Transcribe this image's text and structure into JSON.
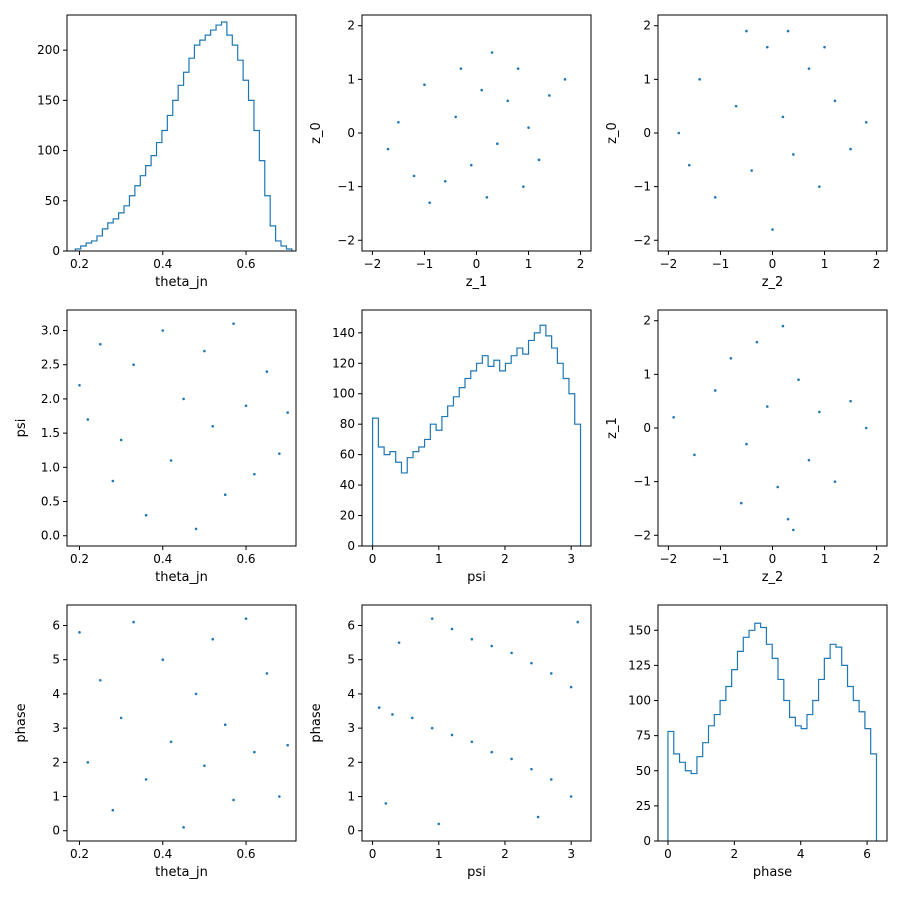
{
  "colors": {
    "series": "#1f77b4",
    "axes": "#000000",
    "background": "#ffffff"
  },
  "chart_data": [
    {
      "id": "theta_hist",
      "type": "step-histogram",
      "xlabel": "theta_jn",
      "ylabel": "",
      "xlim": [
        0.17,
        0.72
      ],
      "ylim": [
        0,
        235
      ],
      "xticks": [
        0.2,
        0.4,
        0.6
      ],
      "xtick_labels": [
        "0.2",
        "0.4",
        "0.6"
      ],
      "yticks": [
        0,
        50,
        100,
        150,
        200
      ],
      "ytick_labels": [
        "0",
        "50",
        "100",
        "150",
        "200"
      ],
      "bin_range": [
        0.19,
        0.71
      ],
      "values": [
        2,
        5,
        8,
        10,
        15,
        22,
        28,
        32,
        38,
        45,
        55,
        65,
        75,
        85,
        95,
        108,
        120,
        135,
        150,
        165,
        178,
        192,
        205,
        210,
        215,
        220,
        225,
        228,
        215,
        205,
        190,
        170,
        150,
        120,
        90,
        55,
        25,
        10,
        5,
        2
      ],
      "grid": false
    },
    {
      "id": "z0_vs_z1",
      "type": "scatter",
      "xlabel": "z_1",
      "ylabel": "z_0",
      "xlim": [
        -2.2,
        2.2
      ],
      "ylim": [
        -2.2,
        2.2
      ],
      "xticks": [
        -2,
        -1,
        0,
        1,
        2
      ],
      "xtick_labels": [
        "−2",
        "−1",
        "0",
        "1",
        "2"
      ],
      "yticks": [
        -2,
        -1,
        0,
        1,
        2
      ],
      "ytick_labels": [
        "−2",
        "−1",
        "0",
        "1",
        "2"
      ],
      "points": [
        [
          -1.5,
          0.2
        ],
        [
          -1.2,
          -0.8
        ],
        [
          -0.9,
          -1.3
        ],
        [
          -0.6,
          -0.9
        ],
        [
          -0.4,
          0.3
        ],
        [
          -0.1,
          -0.6
        ],
        [
          0.1,
          0.8
        ],
        [
          0.3,
          1.5
        ],
        [
          0.4,
          -0.2
        ],
        [
          0.6,
          0.6
        ],
        [
          0.8,
          1.2
        ],
        [
          1.0,
          0.1
        ],
        [
          1.2,
          -0.5
        ],
        [
          1.4,
          0.7
        ],
        [
          1.7,
          1.0
        ],
        [
          -0.3,
          1.2
        ],
        [
          0.2,
          -1.2
        ],
        [
          -1.0,
          0.9
        ],
        [
          0.9,
          -1.0
        ],
        [
          -1.7,
          -0.3
        ]
      ],
      "grid": false
    },
    {
      "id": "z0_vs_z2",
      "type": "scatter",
      "xlabel": "z_2",
      "ylabel": "z_0",
      "xlim": [
        -2.2,
        2.2
      ],
      "ylim": [
        -2.2,
        2.2
      ],
      "xticks": [
        -2,
        -1,
        0,
        1,
        2
      ],
      "xtick_labels": [
        "−2",
        "−1",
        "0",
        "1",
        "2"
      ],
      "yticks": [
        -2,
        -1,
        0,
        1,
        2
      ],
      "ytick_labels": [
        "−2",
        "−1",
        "0",
        "1",
        "2"
      ],
      "points": [
        [
          -1.8,
          0.0
        ],
        [
          -1.4,
          1.0
        ],
        [
          -1.1,
          -1.2
        ],
        [
          -0.7,
          0.5
        ],
        [
          -0.4,
          -0.7
        ],
        [
          -0.1,
          1.6
        ],
        [
          0.0,
          -1.8
        ],
        [
          0.2,
          0.3
        ],
        [
          0.4,
          -0.4
        ],
        [
          0.7,
          1.2
        ],
        [
          0.9,
          -1.0
        ],
        [
          1.2,
          0.6
        ],
        [
          1.5,
          -0.3
        ],
        [
          1.8,
          0.2
        ],
        [
          -0.5,
          1.9
        ],
        [
          0.3,
          1.9
        ],
        [
          -1.6,
          -0.6
        ],
        [
          1.0,
          1.6
        ]
      ],
      "grid": false
    },
    {
      "id": "psi_vs_theta",
      "type": "scatter",
      "xlabel": "theta_jn",
      "ylabel": "psi",
      "xlim": [
        0.17,
        0.72
      ],
      "ylim": [
        -0.15,
        3.3
      ],
      "xticks": [
        0.2,
        0.4,
        0.6
      ],
      "xtick_labels": [
        "0.2",
        "0.4",
        "0.6"
      ],
      "yticks": [
        0,
        0.5,
        1.0,
        1.5,
        2.0,
        2.5,
        3.0
      ],
      "ytick_labels": [
        "0.0",
        "0.5",
        "1.0",
        "1.5",
        "2.0",
        "2.5",
        "3.0"
      ],
      "points": [
        [
          0.2,
          2.2
        ],
        [
          0.22,
          1.7
        ],
        [
          0.25,
          2.8
        ],
        [
          0.28,
          0.8
        ],
        [
          0.3,
          1.4
        ],
        [
          0.33,
          2.5
        ],
        [
          0.36,
          0.3
        ],
        [
          0.4,
          3.0
        ],
        [
          0.42,
          1.1
        ],
        [
          0.45,
          2.0
        ],
        [
          0.48,
          0.1
        ],
        [
          0.5,
          2.7
        ],
        [
          0.52,
          1.6
        ],
        [
          0.55,
          0.6
        ],
        [
          0.57,
          3.1
        ],
        [
          0.6,
          1.9
        ],
        [
          0.62,
          0.9
        ],
        [
          0.65,
          2.4
        ],
        [
          0.7,
          1.8
        ],
        [
          0.68,
          1.2
        ]
      ],
      "grid": false
    },
    {
      "id": "psi_hist",
      "type": "step-histogram",
      "xlabel": "psi",
      "ylabel": "",
      "xlim": [
        -0.16,
        3.3
      ],
      "ylim": [
        0,
        155
      ],
      "xticks": [
        0,
        1,
        2,
        3
      ],
      "xtick_labels": [
        "0",
        "1",
        "2",
        "3"
      ],
      "yticks": [
        0,
        20,
        40,
        60,
        80,
        100,
        120,
        140
      ],
      "ytick_labels": [
        "0",
        "20",
        "40",
        "60",
        "80",
        "100",
        "120",
        "140"
      ],
      "bin_range": [
        0,
        3.14159
      ],
      "values": [
        84,
        65,
        60,
        62,
        55,
        48,
        58,
        62,
        65,
        70,
        80,
        76,
        85,
        92,
        98,
        104,
        110,
        115,
        120,
        125,
        118,
        122,
        115,
        120,
        125,
        130,
        126,
        135,
        140,
        145,
        138,
        130,
        120,
        110,
        100,
        80
      ],
      "grid": false
    },
    {
      "id": "z1_vs_z2",
      "type": "scatter",
      "xlabel": "z_2",
      "ylabel": "z_1",
      "xlim": [
        -2.2,
        2.2
      ],
      "ylim": [
        -2.2,
        2.2
      ],
      "xticks": [
        -2,
        -1,
        0,
        1,
        2
      ],
      "xtick_labels": [
        "−2",
        "−1",
        "0",
        "1",
        "2"
      ],
      "yticks": [
        -2,
        -1,
        0,
        1,
        2
      ],
      "ytick_labels": [
        "−2",
        "−1",
        "0",
        "1",
        "2"
      ],
      "points": [
        [
          -1.9,
          0.2
        ],
        [
          -1.5,
          -0.5
        ],
        [
          -1.1,
          0.7
        ],
        [
          -0.8,
          1.3
        ],
        [
          -0.5,
          -0.3
        ],
        [
          -0.3,
          1.6
        ],
        [
          -0.1,
          0.4
        ],
        [
          0.1,
          -1.1
        ],
        [
          0.3,
          -1.7
        ],
        [
          0.5,
          0.9
        ],
        [
          0.7,
          -0.6
        ],
        [
          0.9,
          0.3
        ],
        [
          1.2,
          -1.0
        ],
        [
          1.5,
          0.5
        ],
        [
          1.8,
          0.0
        ],
        [
          0.2,
          1.9
        ],
        [
          -0.6,
          -1.4
        ],
        [
          0.4,
          -1.9
        ]
      ],
      "grid": false
    },
    {
      "id": "phase_vs_theta",
      "type": "scatter",
      "xlabel": "theta_jn",
      "ylabel": "phase",
      "xlim": [
        0.17,
        0.72
      ],
      "ylim": [
        -0.3,
        6.6
      ],
      "xticks": [
        0.2,
        0.4,
        0.6
      ],
      "xtick_labels": [
        "0.2",
        "0.4",
        "0.6"
      ],
      "yticks": [
        0,
        1,
        2,
        3,
        4,
        5,
        6
      ],
      "ytick_labels": [
        "0",
        "1",
        "2",
        "3",
        "4",
        "5",
        "6"
      ],
      "points": [
        [
          0.2,
          5.8
        ],
        [
          0.22,
          2.0
        ],
        [
          0.25,
          4.4
        ],
        [
          0.28,
          0.6
        ],
        [
          0.3,
          3.3
        ],
        [
          0.33,
          6.1
        ],
        [
          0.36,
          1.5
        ],
        [
          0.4,
          5.0
        ],
        [
          0.42,
          2.6
        ],
        [
          0.45,
          0.1
        ],
        [
          0.48,
          4.0
        ],
        [
          0.5,
          1.9
        ],
        [
          0.52,
          5.6
        ],
        [
          0.55,
          3.1
        ],
        [
          0.57,
          0.9
        ],
        [
          0.6,
          6.2
        ],
        [
          0.62,
          2.3
        ],
        [
          0.65,
          4.6
        ],
        [
          0.7,
          2.5
        ],
        [
          0.68,
          1.0
        ]
      ],
      "grid": false
    },
    {
      "id": "phase_vs_psi",
      "type": "scatter",
      "xlabel": "psi",
      "ylabel": "phase",
      "xlim": [
        -0.16,
        3.3
      ],
      "ylim": [
        -0.3,
        6.6
      ],
      "xticks": [
        0,
        1,
        2,
        3
      ],
      "xtick_labels": [
        "0",
        "1",
        "2",
        "3"
      ],
      "yticks": [
        0,
        1,
        2,
        3,
        4,
        5,
        6
      ],
      "ytick_labels": [
        "0",
        "1",
        "2",
        "3",
        "4",
        "5",
        "6"
      ],
      "points": [
        [
          0.1,
          3.6
        ],
        [
          0.3,
          3.4
        ],
        [
          0.6,
          3.3
        ],
        [
          0.9,
          3.0
        ],
        [
          1.2,
          2.8
        ],
        [
          1.5,
          2.6
        ],
        [
          1.8,
          2.3
        ],
        [
          2.1,
          2.1
        ],
        [
          2.4,
          1.8
        ],
        [
          2.7,
          1.5
        ],
        [
          3.0,
          1.0
        ],
        [
          0.9,
          6.2
        ],
        [
          1.2,
          5.9
        ],
        [
          1.5,
          5.6
        ],
        [
          1.8,
          5.4
        ],
        [
          2.1,
          5.2
        ],
        [
          2.4,
          4.9
        ],
        [
          2.7,
          4.6
        ],
        [
          3.0,
          4.2
        ],
        [
          0.4,
          5.5
        ],
        [
          2.5,
          0.4
        ],
        [
          0.2,
          0.8
        ],
        [
          1.0,
          0.2
        ],
        [
          3.1,
          6.1
        ]
      ],
      "grid": false
    },
    {
      "id": "phase_hist",
      "type": "step-histogram",
      "xlabel": "phase",
      "ylabel": "",
      "xlim": [
        -0.3,
        6.6
      ],
      "ylim": [
        0,
        168
      ],
      "xticks": [
        0,
        2,
        4,
        6
      ],
      "xtick_labels": [
        "0",
        "2",
        "4",
        "6"
      ],
      "yticks": [
        0,
        25,
        50,
        75,
        100,
        125,
        150
      ],
      "ytick_labels": [
        "0",
        "25",
        "50",
        "75",
        "100",
        "125",
        "150"
      ],
      "bin_range": [
        0,
        6.28318
      ],
      "values": [
        78,
        62,
        56,
        50,
        48,
        60,
        70,
        82,
        90,
        100,
        110,
        122,
        135,
        145,
        150,
        155,
        152,
        140,
        130,
        115,
        100,
        88,
        82,
        80,
        90,
        100,
        115,
        130,
        140,
        138,
        125,
        110,
        100,
        92,
        80,
        62
      ],
      "grid": false
    }
  ]
}
